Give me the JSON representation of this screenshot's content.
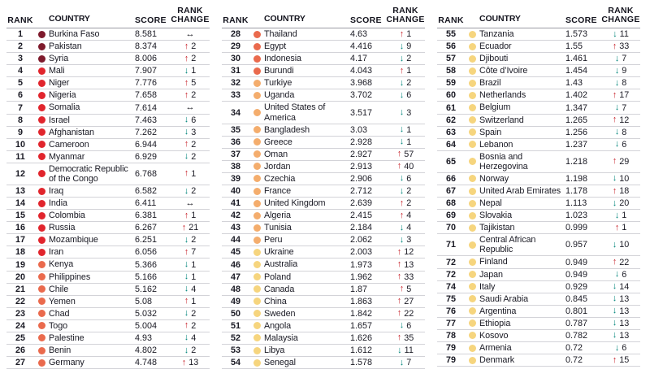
{
  "headers": {
    "rank": "RANK",
    "country": "COUNTRY",
    "score": "SCORE",
    "change_line1": "RANK",
    "change_line2": "CHANGE"
  },
  "icons": {
    "up": "↑",
    "down": "↓",
    "same": "↔"
  },
  "colors": {
    "up": "#c9262f",
    "down": "#00857b",
    "same": "#16161e",
    "text": "#1a1a24",
    "maroon": "#7e1a2c",
    "red": "#e1252d",
    "orange": "#ea6a4d",
    "peach": "#f4ad6d",
    "yellow": "#f6d57e"
  },
  "chart_data": {
    "type": "table",
    "columns": [
      "RANK",
      "COUNTRY",
      "SCORE",
      "RANK CHANGE"
    ],
    "groups": [
      {
        "rows": [
          {
            "rank": "1",
            "country": "Burkina Faso",
            "score": "8.581",
            "dir": "same",
            "delta": "",
            "tier": "maroon"
          },
          {
            "rank": "2",
            "country": "Pakistan",
            "score": "8.374",
            "dir": "up",
            "delta": "2",
            "tier": "maroon"
          },
          {
            "rank": "3",
            "country": "Syria",
            "score": "8.006",
            "dir": "up",
            "delta": "2",
            "tier": "maroon"
          },
          {
            "rank": "4",
            "country": "Mali",
            "score": "7.907",
            "dir": "down",
            "delta": "1",
            "tier": "red"
          },
          {
            "rank": "5",
            "country": "Niger",
            "score": "7.776",
            "dir": "up",
            "delta": "5",
            "tier": "red"
          },
          {
            "rank": "6",
            "country": "Nigeria",
            "score": "7.658",
            "dir": "up",
            "delta": "2",
            "tier": "red"
          },
          {
            "rank": "7",
            "country": "Somalia",
            "score": "7.614",
            "dir": "same",
            "delta": "",
            "tier": "red"
          },
          {
            "rank": "8",
            "country": "Israel",
            "score": "7.463",
            "dir": "down",
            "delta": "6",
            "tier": "red"
          },
          {
            "rank": "9",
            "country": "Afghanistan",
            "score": "7.262",
            "dir": "down",
            "delta": "3",
            "tier": "red"
          },
          {
            "rank": "10",
            "country": "Cameroon",
            "score": "6.944",
            "dir": "up",
            "delta": "2",
            "tier": "red"
          },
          {
            "rank": "11",
            "country": "Myanmar",
            "score": "6.929",
            "dir": "down",
            "delta": "2",
            "tier": "red"
          },
          {
            "rank": "12",
            "country": "Democratic Republic of the Congo",
            "score": "6.768",
            "dir": "up",
            "delta": "1",
            "tier": "red"
          },
          {
            "rank": "13",
            "country": "Iraq",
            "score": "6.582",
            "dir": "down",
            "delta": "2",
            "tier": "red"
          },
          {
            "rank": "14",
            "country": "India",
            "score": "6.411",
            "dir": "same",
            "delta": "",
            "tier": "red"
          },
          {
            "rank": "15",
            "country": "Colombia",
            "score": "6.381",
            "dir": "up",
            "delta": "1",
            "tier": "red"
          },
          {
            "rank": "16",
            "country": "Russia",
            "score": "6.267",
            "dir": "up",
            "delta": "21",
            "tier": "red"
          },
          {
            "rank": "17",
            "country": "Mozambique",
            "score": "6.251",
            "dir": "down",
            "delta": "2",
            "tier": "red"
          },
          {
            "rank": "18",
            "country": "Iran",
            "score": "6.056",
            "dir": "up",
            "delta": "7",
            "tier": "red"
          },
          {
            "rank": "19",
            "country": "Kenya",
            "score": "5.366",
            "dir": "down",
            "delta": "1",
            "tier": "orange"
          },
          {
            "rank": "20",
            "country": "Philippines",
            "score": "5.166",
            "dir": "down",
            "delta": "1",
            "tier": "orange"
          },
          {
            "rank": "21",
            "country": "Chile",
            "score": "5.162",
            "dir": "down",
            "delta": "4",
            "tier": "orange"
          },
          {
            "rank": "22",
            "country": "Yemen",
            "score": "5.08",
            "dir": "up",
            "delta": "1",
            "tier": "orange"
          },
          {
            "rank": "23",
            "country": "Chad",
            "score": "5.032",
            "dir": "down",
            "delta": "2",
            "tier": "orange"
          },
          {
            "rank": "24",
            "country": "Togo",
            "score": "5.004",
            "dir": "up",
            "delta": "2",
            "tier": "orange"
          },
          {
            "rank": "25",
            "country": "Palestine",
            "score": "4.93",
            "dir": "down",
            "delta": "4",
            "tier": "orange"
          },
          {
            "rank": "26",
            "country": "Benin",
            "score": "4.802",
            "dir": "down",
            "delta": "2",
            "tier": "orange"
          },
          {
            "rank": "27",
            "country": "Germany",
            "score": "4.748",
            "dir": "up",
            "delta": "13",
            "tier": "orange"
          }
        ]
      },
      {
        "rows": [
          {
            "rank": "28",
            "country": "Thailand",
            "score": "4.63",
            "dir": "up",
            "delta": "1",
            "tier": "orange"
          },
          {
            "rank": "29",
            "country": "Egypt",
            "score": "4.416",
            "dir": "down",
            "delta": "9",
            "tier": "orange"
          },
          {
            "rank": "30",
            "country": "Indonesia",
            "score": "4.17",
            "dir": "down",
            "delta": "2",
            "tier": "orange"
          },
          {
            "rank": "31",
            "country": "Burundi",
            "score": "4.043",
            "dir": "up",
            "delta": "1",
            "tier": "orange"
          },
          {
            "rank": "32",
            "country": "Turkiye",
            "score": "3.968",
            "dir": "down",
            "delta": "2",
            "tier": "peach"
          },
          {
            "rank": "33",
            "country": "Uganda",
            "score": "3.702",
            "dir": "down",
            "delta": "6",
            "tier": "peach"
          },
          {
            "rank": "34",
            "country": "United States of America",
            "score": "3.517",
            "dir": "down",
            "delta": "3",
            "tier": "peach"
          },
          {
            "rank": "35",
            "country": "Bangladesh",
            "score": "3.03",
            "dir": "down",
            "delta": "1",
            "tier": "peach"
          },
          {
            "rank": "36",
            "country": "Greece",
            "score": "2.928",
            "dir": "down",
            "delta": "1",
            "tier": "peach"
          },
          {
            "rank": "37",
            "country": "Oman",
            "score": "2.927",
            "dir": "up",
            "delta": "57",
            "tier": "peach"
          },
          {
            "rank": "38",
            "country": "Jordan",
            "score": "2.913",
            "dir": "up",
            "delta": "40",
            "tier": "peach"
          },
          {
            "rank": "39",
            "country": "Czechia",
            "score": "2.906",
            "dir": "down",
            "delta": "6",
            "tier": "peach"
          },
          {
            "rank": "40",
            "country": "France",
            "score": "2.712",
            "dir": "down",
            "delta": "2",
            "tier": "peach"
          },
          {
            "rank": "41",
            "country": "United Kingdom",
            "score": "2.639",
            "dir": "up",
            "delta": "2",
            "tier": "peach"
          },
          {
            "rank": "42",
            "country": "Algeria",
            "score": "2.415",
            "dir": "up",
            "delta": "4",
            "tier": "peach"
          },
          {
            "rank": "43",
            "country": "Tunisia",
            "score": "2.184",
            "dir": "down",
            "delta": "4",
            "tier": "peach"
          },
          {
            "rank": "44",
            "country": "Peru",
            "score": "2.062",
            "dir": "down",
            "delta": "3",
            "tier": "peach"
          },
          {
            "rank": "45",
            "country": "Ukraine",
            "score": "2.003",
            "dir": "up",
            "delta": "12",
            "tier": "yellow"
          },
          {
            "rank": "46",
            "country": "Australia",
            "score": "1.973",
            "dir": "up",
            "delta": "13",
            "tier": "yellow"
          },
          {
            "rank": "47",
            "country": "Poland",
            "score": "1.962",
            "dir": "up",
            "delta": "33",
            "tier": "yellow"
          },
          {
            "rank": "48",
            "country": "Canada",
            "score": "1.87",
            "dir": "up",
            "delta": "5",
            "tier": "yellow"
          },
          {
            "rank": "49",
            "country": "China",
            "score": "1.863",
            "dir": "up",
            "delta": "27",
            "tier": "yellow"
          },
          {
            "rank": "50",
            "country": "Sweden",
            "score": "1.842",
            "dir": "up",
            "delta": "22",
            "tier": "yellow"
          },
          {
            "rank": "51",
            "country": "Angola",
            "score": "1.657",
            "dir": "down",
            "delta": "6",
            "tier": "yellow"
          },
          {
            "rank": "52",
            "country": "Malaysia",
            "score": "1.626",
            "dir": "up",
            "delta": "35",
            "tier": "yellow"
          },
          {
            "rank": "53",
            "country": "Libya",
            "score": "1.612",
            "dir": "down",
            "delta": "11",
            "tier": "yellow"
          },
          {
            "rank": "54",
            "country": "Senegal",
            "score": "1.578",
            "dir": "down",
            "delta": "7",
            "tier": "yellow"
          }
        ]
      },
      {
        "rows": [
          {
            "rank": "55",
            "country": "Tanzania",
            "score": "1.573",
            "dir": "down",
            "delta": "11",
            "tier": "yellow"
          },
          {
            "rank": "56",
            "country": "Ecuador",
            "score": "1.55",
            "dir": "up",
            "delta": "33",
            "tier": "yellow"
          },
          {
            "rank": "57",
            "country": "Djibouti",
            "score": "1.461",
            "dir": "down",
            "delta": "7",
            "tier": "yellow"
          },
          {
            "rank": "58",
            "country": "Côte d’Ivoire",
            "score": "1.454",
            "dir": "down",
            "delta": "9",
            "tier": "yellow"
          },
          {
            "rank": "59",
            "country": "Brazil",
            "score": "1.43",
            "dir": "down",
            "delta": "8",
            "tier": "yellow"
          },
          {
            "rank": "60",
            "country": "Netherlands",
            "score": "1.402",
            "dir": "up",
            "delta": "17",
            "tier": "yellow"
          },
          {
            "rank": "61",
            "country": "Belgium",
            "score": "1.347",
            "dir": "down",
            "delta": "7",
            "tier": "yellow"
          },
          {
            "rank": "62",
            "country": "Switzerland",
            "score": "1.265",
            "dir": "up",
            "delta": "12",
            "tier": "yellow"
          },
          {
            "rank": "63",
            "country": "Spain",
            "score": "1.256",
            "dir": "down",
            "delta": "8",
            "tier": "yellow"
          },
          {
            "rank": "64",
            "country": "Lebanon",
            "score": "1.237",
            "dir": "down",
            "delta": "6",
            "tier": "yellow"
          },
          {
            "rank": "65",
            "country": "Bosnia and Herzegovina",
            "score": "1.218",
            "dir": "up",
            "delta": "29",
            "tier": "yellow"
          },
          {
            "rank": "66",
            "country": "Norway",
            "score": "1.198",
            "dir": "down",
            "delta": "10",
            "tier": "yellow"
          },
          {
            "rank": "67",
            "country": "United Arab Emirates",
            "score": "1.178",
            "dir": "up",
            "delta": "18",
            "tier": "yellow"
          },
          {
            "rank": "68",
            "country": "Nepal",
            "score": "1.113",
            "dir": "down",
            "delta": "20",
            "tier": "yellow"
          },
          {
            "rank": "69",
            "country": "Slovakia",
            "score": "1.023",
            "dir": "down",
            "delta": "1",
            "tier": "yellow"
          },
          {
            "rank": "70",
            "country": "Tajikistan",
            "score": "0.999",
            "dir": "up",
            "delta": "1",
            "tier": "yellow"
          },
          {
            "rank": "71",
            "country": "Central African Republic",
            "score": "0.957",
            "dir": "down",
            "delta": "10",
            "tier": "yellow"
          },
          {
            "rank": "72",
            "country": "Finland",
            "score": "0.949",
            "dir": "up",
            "delta": "22",
            "tier": "yellow"
          },
          {
            "rank": "72",
            "country": "Japan",
            "score": "0.949",
            "dir": "down",
            "delta": "6",
            "tier": "yellow"
          },
          {
            "rank": "74",
            "country": "Italy",
            "score": "0.929",
            "dir": "down",
            "delta": "14",
            "tier": "yellow"
          },
          {
            "rank": "75",
            "country": "Saudi Arabia",
            "score": "0.845",
            "dir": "down",
            "delta": "13",
            "tier": "yellow"
          },
          {
            "rank": "76",
            "country": "Argentina",
            "score": "0.801",
            "dir": "down",
            "delta": "13",
            "tier": "yellow"
          },
          {
            "rank": "77",
            "country": "Ethiopia",
            "score": "0.787",
            "dir": "down",
            "delta": "13",
            "tier": "yellow"
          },
          {
            "rank": "78",
            "country": "Kosovo",
            "score": "0.782",
            "dir": "down",
            "delta": "13",
            "tier": "yellow"
          },
          {
            "rank": "79",
            "country": "Armenia",
            "score": "0.72",
            "dir": "down",
            "delta": "6",
            "tier": "yellow"
          },
          {
            "rank": "79",
            "country": "Denmark",
            "score": "0.72",
            "dir": "up",
            "delta": "15",
            "tier": "yellow"
          }
        ]
      }
    ]
  }
}
